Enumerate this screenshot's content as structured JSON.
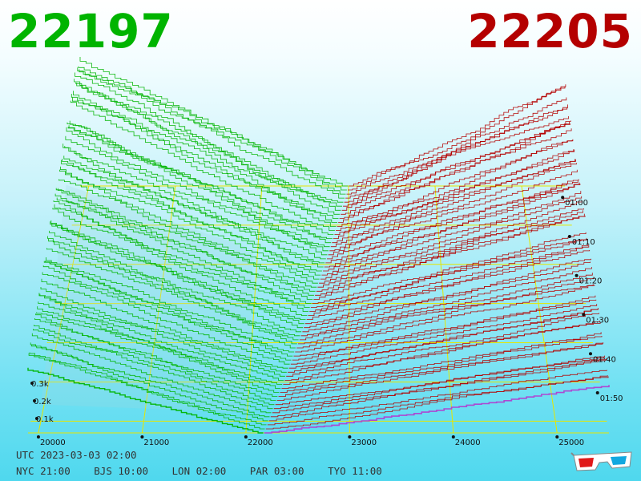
{
  "header": {
    "bid_price": "22197",
    "ask_price": "22205"
  },
  "footer": {
    "utc": "UTC 2023-03-03 02:00",
    "zones": [
      "NYC 21:00",
      "BJS 10:00",
      "LON 02:00",
      "PAR 03:00",
      "TYO 11:00"
    ]
  },
  "icons": {
    "glasses": "3d-glasses-icon"
  },
  "colors": {
    "bid": "#00b400",
    "ask": "#b40000",
    "grid": "#e6e600",
    "latest_ask": "#b040d0"
  },
  "chart_data": {
    "type": "area",
    "chart_kind": "3d order book depth history",
    "x_axis": {
      "ticks": [
        "20000",
        "21000",
        "22000",
        "23000",
        "24000",
        "25000"
      ],
      "range": [
        19900,
        25500
      ]
    },
    "volume_axis": {
      "ticks": [
        "0.1k",
        "0.2k",
        "0.3k"
      ]
    },
    "time_axis": {
      "ticks": [
        "01:00",
        "01:10",
        "01:20",
        "01:30",
        "01:40",
        "01:50"
      ]
    },
    "latest_snapshot": {
      "bid_price": 22197,
      "ask_price": 22205
    },
    "grid": true
  }
}
